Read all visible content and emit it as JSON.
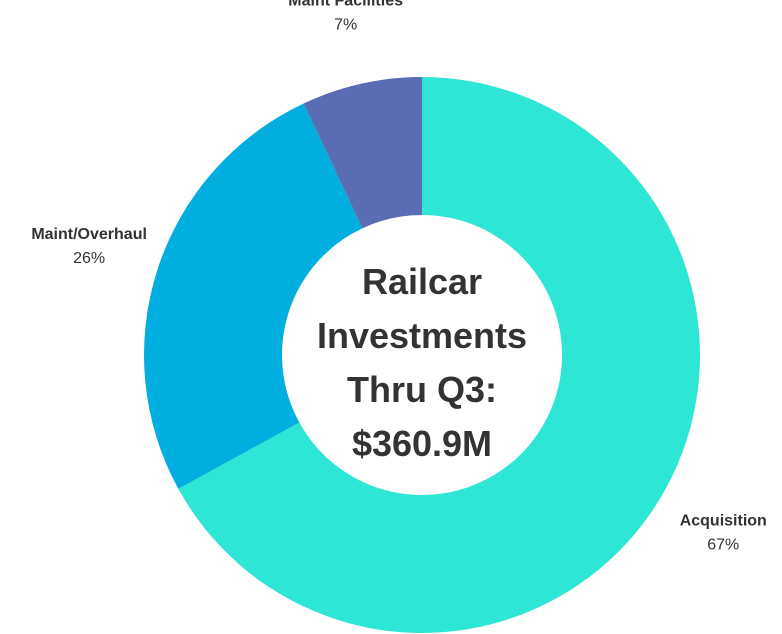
{
  "chart_data": {
    "type": "donut",
    "title": "Railcar Investments Thru Q3: $360.9M",
    "categories": [
      "Acquisition",
      "Maint/Overhaul",
      "Maint Facilities"
    ],
    "values": [
      67,
      26,
      7
    ],
    "value_labels": [
      "67%",
      "26%",
      "7%"
    ],
    "colors": [
      "#2ee6d6",
      "#00aee0",
      "#5a6cb4"
    ]
  }
}
